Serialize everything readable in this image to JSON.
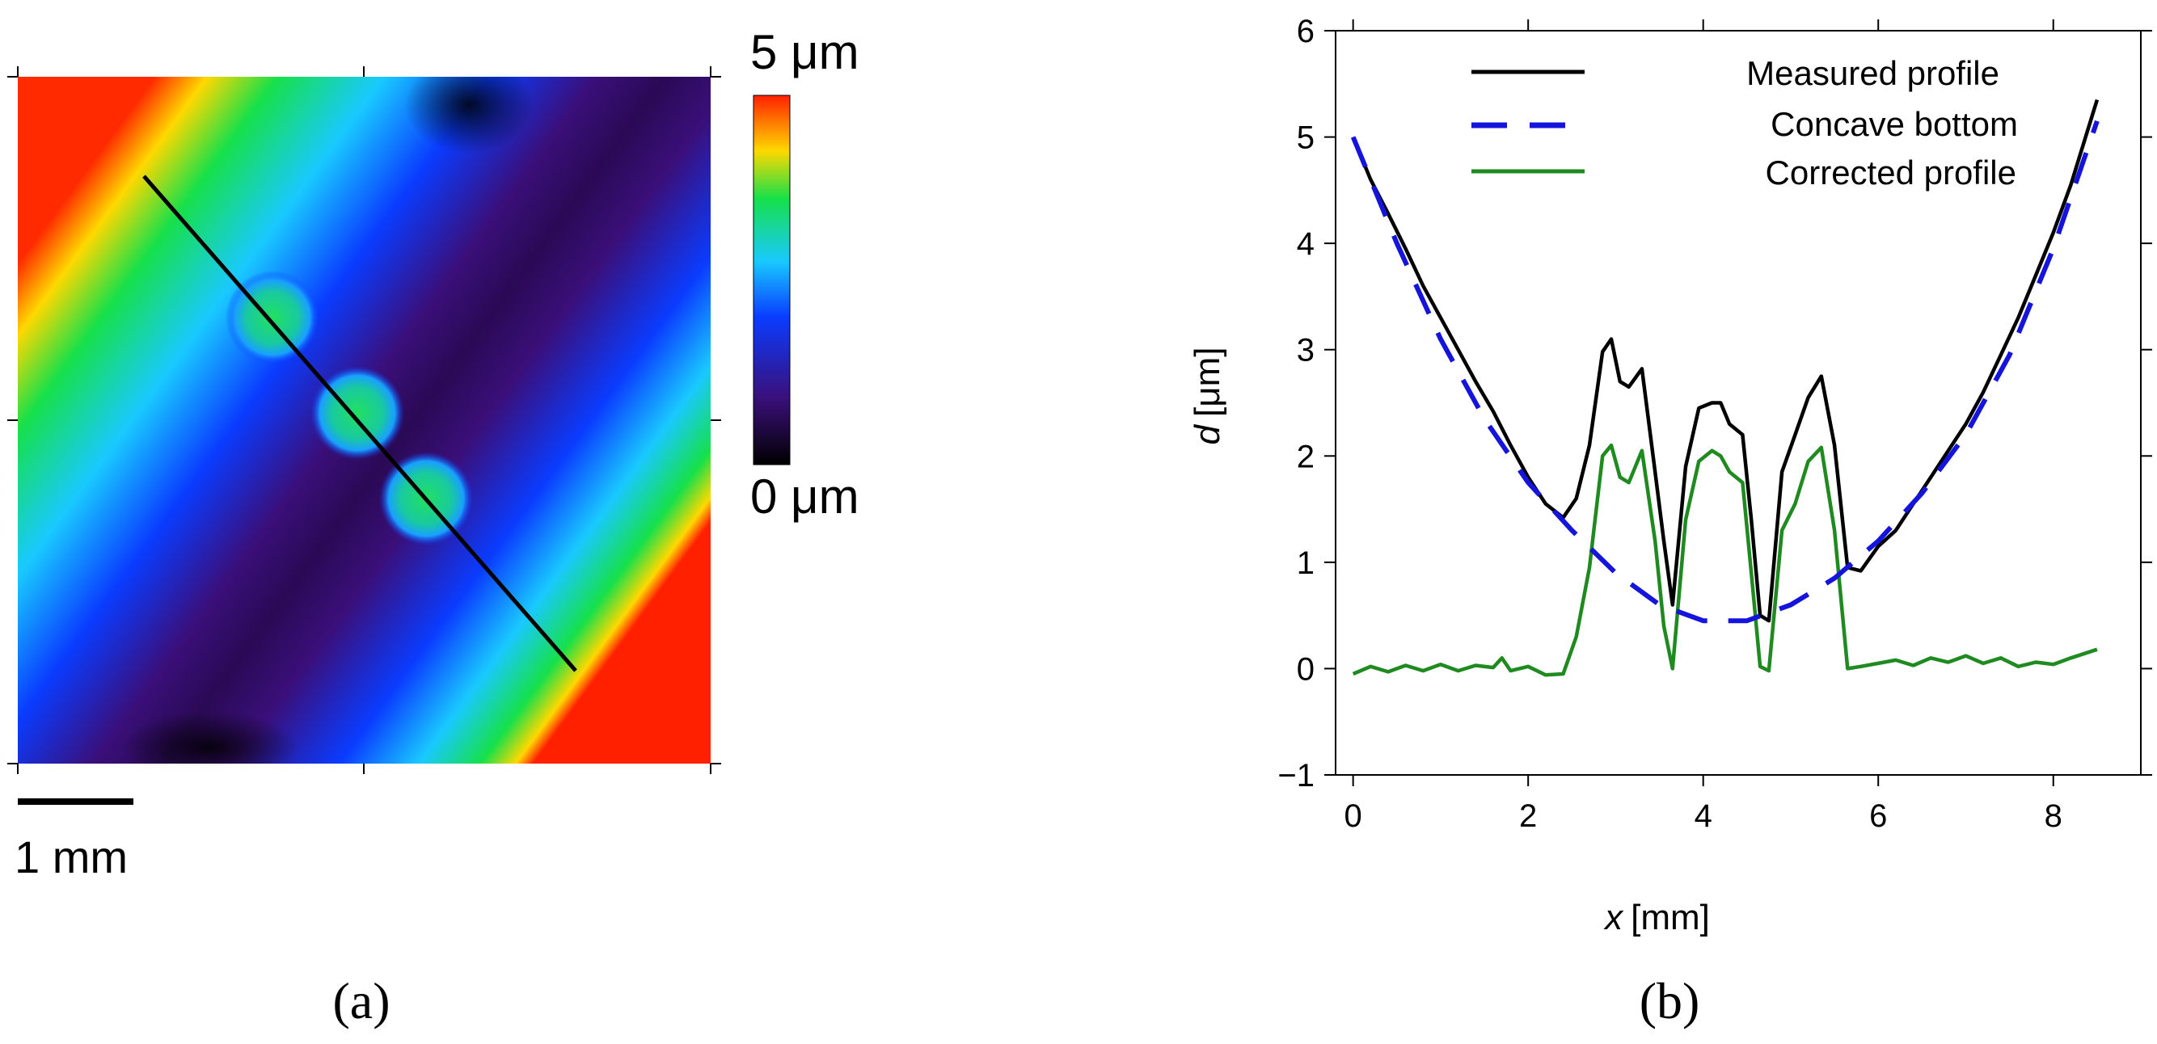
{
  "panel_a": {
    "label": "(a)",
    "colorbar_max_label": "5 μm",
    "colorbar_min_label": "0 μm",
    "scalebar_label": "1 mm",
    "colorbar_range_um": [
      0,
      5
    ],
    "colors": {
      "low": "#000000",
      "purple": "#3a0f7a",
      "blue": "#0a3cff",
      "cyan": "#19c9ff",
      "green": "#16e04a",
      "yellow": "#ffd800",
      "high": "#ff2000"
    }
  },
  "panel_b": {
    "label": "(b)"
  },
  "chart_data": {
    "type": "line",
    "title": "",
    "xlabel_var": "x",
    "xlabel_unit": "[mm]",
    "ylabel_var": "d",
    "ylabel_unit": "[μm]",
    "xlim": [
      -0.2,
      9.0
    ],
    "ylim": [
      -1,
      6
    ],
    "xticks": [
      0,
      2,
      4,
      6,
      8
    ],
    "yticks": [
      -1,
      0,
      1,
      2,
      3,
      4,
      5,
      6
    ],
    "ytick_labels": [
      "−1",
      "0",
      "1",
      "2",
      "3",
      "4",
      "5",
      "6"
    ],
    "legend_position": "top",
    "series": [
      {
        "name": "Measured profile",
        "color": "#000000",
        "style": "solid",
        "x": [
          0,
          0.2,
          0.4,
          0.6,
          0.8,
          1.0,
          1.2,
          1.4,
          1.6,
          1.8,
          2.0,
          2.2,
          2.4,
          2.55,
          2.7,
          2.85,
          2.95,
          3.05,
          3.15,
          3.3,
          3.45,
          3.55,
          3.65,
          3.8,
          3.95,
          4.1,
          4.2,
          4.3,
          4.45,
          4.55,
          4.65,
          4.75,
          4.9,
          5.05,
          5.2,
          5.35,
          5.5,
          5.65,
          5.8,
          6.0,
          6.2,
          6.4,
          6.6,
          6.8,
          7.0,
          7.2,
          7.4,
          7.6,
          7.8,
          8.0,
          8.2,
          8.5
        ],
        "y": [
          5.0,
          4.6,
          4.28,
          3.95,
          3.6,
          3.3,
          3.0,
          2.7,
          2.42,
          2.1,
          1.8,
          1.55,
          1.42,
          1.6,
          2.1,
          2.98,
          3.1,
          2.7,
          2.65,
          2.82,
          1.85,
          1.2,
          0.6,
          1.9,
          2.45,
          2.5,
          2.5,
          2.3,
          2.2,
          1.4,
          0.5,
          0.45,
          1.85,
          2.2,
          2.55,
          2.75,
          2.1,
          0.95,
          0.92,
          1.15,
          1.3,
          1.55,
          1.8,
          2.05,
          2.3,
          2.6,
          2.95,
          3.3,
          3.7,
          4.1,
          4.55,
          5.35
        ]
      },
      {
        "name": "Concave bottom",
        "color": "#1414dc",
        "style": "dashed",
        "x": [
          0,
          0.5,
          1.0,
          1.5,
          2.0,
          2.5,
          3.0,
          3.5,
          4.0,
          4.5,
          5.0,
          5.5,
          6.0,
          6.5,
          7.0,
          7.5,
          8.0,
          8.5
        ],
        "y": [
          5.0,
          4.0,
          3.1,
          2.35,
          1.75,
          1.3,
          0.9,
          0.6,
          0.45,
          0.45,
          0.6,
          0.85,
          1.2,
          1.65,
          2.2,
          2.95,
          3.95,
          5.15
        ]
      },
      {
        "name": "Corrected profile",
        "color": "#1f8a1f",
        "style": "solid",
        "x": [
          0,
          0.2,
          0.4,
          0.6,
          0.8,
          1.0,
          1.2,
          1.4,
          1.6,
          1.7,
          1.8,
          2.0,
          2.2,
          2.4,
          2.55,
          2.7,
          2.85,
          2.95,
          3.05,
          3.15,
          3.3,
          3.45,
          3.55,
          3.65,
          3.8,
          3.95,
          4.1,
          4.2,
          4.3,
          4.45,
          4.55,
          4.65,
          4.75,
          4.9,
          5.05,
          5.2,
          5.35,
          5.5,
          5.65,
          5.8,
          6.0,
          6.2,
          6.4,
          6.6,
          6.8,
          7.0,
          7.2,
          7.4,
          7.6,
          7.8,
          8.0,
          8.2,
          8.5
        ],
        "y": [
          -0.05,
          0.02,
          -0.03,
          0.03,
          -0.02,
          0.04,
          -0.02,
          0.03,
          0.01,
          0.1,
          -0.02,
          0.02,
          -0.06,
          -0.05,
          0.3,
          0.95,
          2.0,
          2.1,
          1.8,
          1.75,
          2.05,
          1.2,
          0.4,
          0.0,
          1.4,
          1.95,
          2.05,
          2.0,
          1.85,
          1.75,
          0.9,
          0.02,
          -0.02,
          1.3,
          1.55,
          1.95,
          2.08,
          1.3,
          0.0,
          0.02,
          0.05,
          0.08,
          0.03,
          0.1,
          0.06,
          0.12,
          0.05,
          0.1,
          0.02,
          0.06,
          0.04,
          0.1,
          0.18
        ]
      }
    ]
  }
}
